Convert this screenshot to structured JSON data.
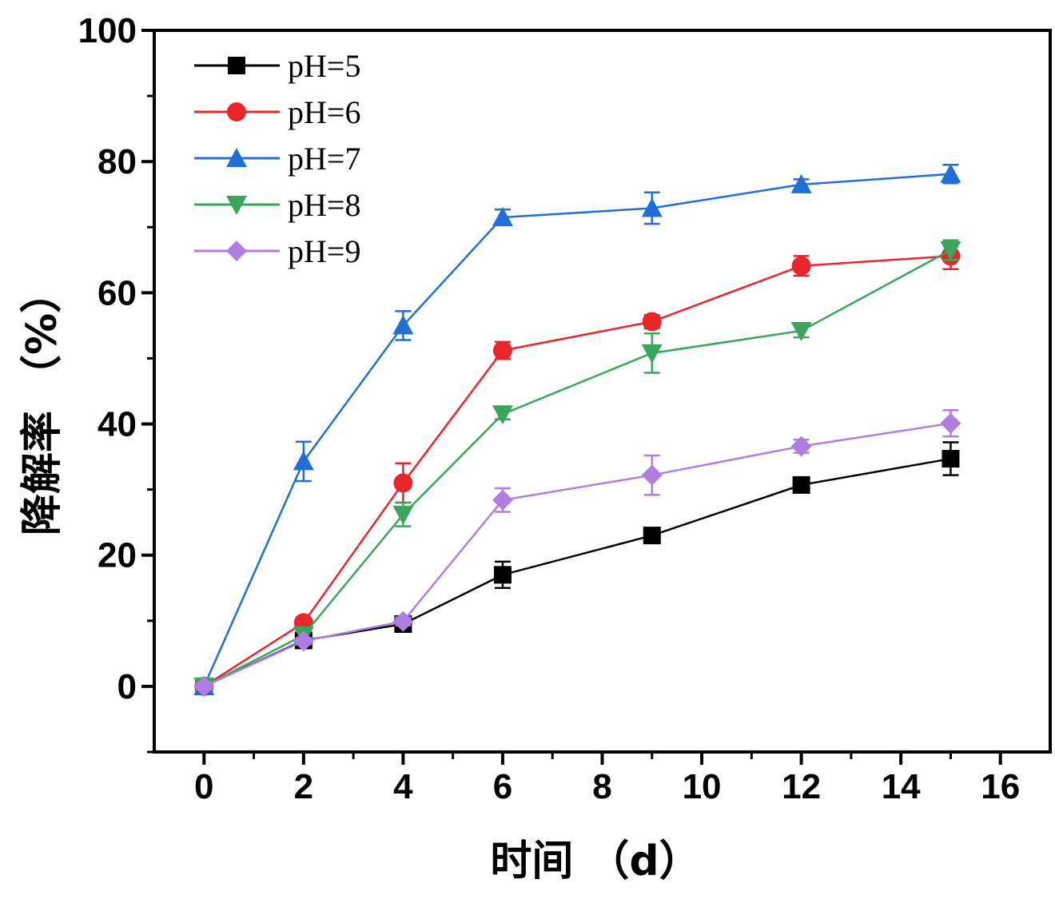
{
  "chart_data": {
    "type": "line",
    "title": "",
    "xlabel": "时间 （d）",
    "ylabel": "降解率 （%）",
    "xlim": [
      -1,
      17
    ],
    "ylim": [
      -10,
      100
    ],
    "xticks": [
      0,
      2,
      4,
      6,
      8,
      10,
      12,
      14,
      16
    ],
    "yticks": [
      0,
      20,
      40,
      60,
      80,
      100
    ],
    "x": [
      0,
      2,
      4,
      6,
      9,
      12,
      15
    ],
    "legend_position": "top-left",
    "grid": false,
    "series": [
      {
        "name": "pH=5",
        "color": "#000000",
        "marker": "square",
        "values": [
          0,
          7,
          9.5,
          17,
          23,
          30.7,
          34.7
        ],
        "errors": [
          0.5,
          0.8,
          0.8,
          2,
          1,
          0.8,
          2.5
        ]
      },
      {
        "name": "pH=6",
        "color": "#e8262b",
        "marker": "circle",
        "values": [
          0,
          9.7,
          31,
          51.2,
          55.6,
          64.1,
          65.6
        ],
        "errors": [
          0.5,
          0.8,
          3,
          1.3,
          1,
          1.5,
          2
        ]
      },
      {
        "name": "pH=7",
        "color": "#1f6fd6",
        "marker": "triangle-up",
        "values": [
          0,
          34.3,
          55,
          71.5,
          72.9,
          76.5,
          78.1
        ],
        "errors": [
          0.5,
          3,
          2.2,
          1.2,
          2.4,
          0.8,
          1.4
        ]
      },
      {
        "name": "pH=8",
        "color": "#3ba55c",
        "marker": "triangle-down",
        "values": [
          0,
          7.8,
          26.2,
          41.5,
          50.8,
          54.2,
          66.5
        ],
        "errors": [
          0.5,
          0.8,
          1.8,
          0.8,
          3,
          1,
          1.5
        ]
      },
      {
        "name": "pH=9",
        "color": "#b07ee0",
        "marker": "diamond",
        "values": [
          0,
          6.9,
          9.9,
          28.4,
          32.2,
          36.6,
          40.1
        ],
        "errors": [
          0.5,
          0.5,
          0.6,
          1.8,
          3,
          1,
          2
        ]
      }
    ]
  }
}
